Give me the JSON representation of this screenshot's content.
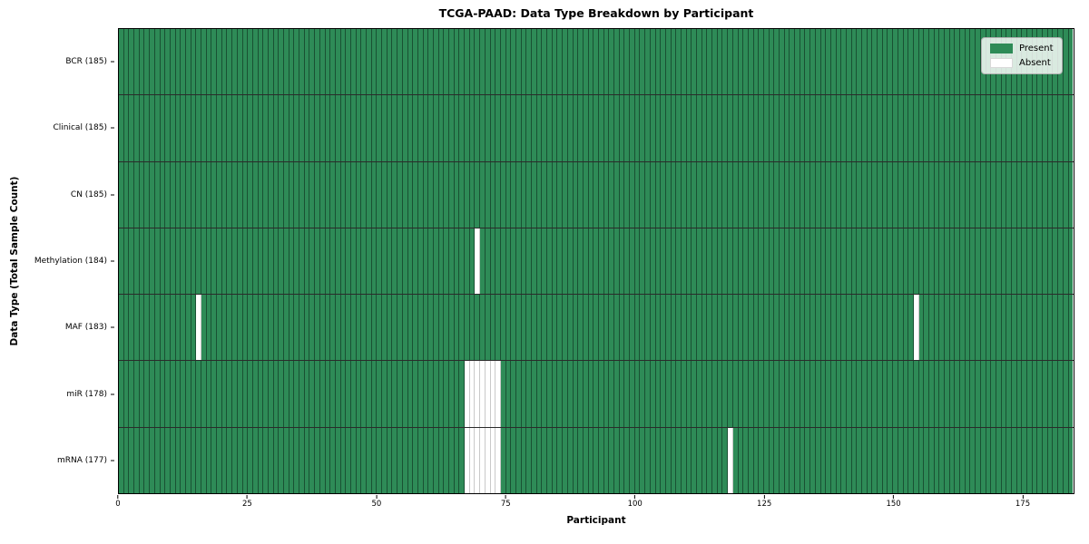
{
  "title": "TCGA-PAAD: Data Type Breakdown by Participant",
  "xlabel": "Participant",
  "ylabel": "Data Type (Total Sample Count)",
  "legend": {
    "present_label": "Present",
    "absent_label": "Absent"
  },
  "colors": {
    "present": "#2e8b57",
    "absent": "#ffffff"
  },
  "chart_data": {
    "type": "heatmap",
    "title": "TCGA-PAAD: Data Type Breakdown by Participant",
    "xlabel": "Participant",
    "ylabel": "Data Type (Total Sample Count)",
    "x_range": [
      0,
      185
    ],
    "n_participants": 185,
    "x_ticks": [
      0,
      25,
      50,
      75,
      100,
      125,
      150,
      175
    ],
    "legend_position": "upper right",
    "grid": "cell-edges",
    "rows": [
      {
        "label": "BCR (185)",
        "data_type": "BCR",
        "total_sample_count": 185,
        "absent_participants": []
      },
      {
        "label": "Clinical (185)",
        "data_type": "Clinical",
        "total_sample_count": 185,
        "absent_participants": []
      },
      {
        "label": "CN (185)",
        "data_type": "CN",
        "total_sample_count": 185,
        "absent_participants": []
      },
      {
        "label": "Methylation (184)",
        "data_type": "Methylation",
        "total_sample_count": 184,
        "absent_participants": [
          69
        ]
      },
      {
        "label": "MAF (183)",
        "data_type": "MAF",
        "total_sample_count": 183,
        "absent_participants": [
          15,
          154
        ]
      },
      {
        "label": "miR (178)",
        "data_type": "miR",
        "total_sample_count": 178,
        "absent_participants": [
          67,
          68,
          69,
          70,
          71,
          72,
          73
        ]
      },
      {
        "label": "mRNA (177)",
        "data_type": "mRNA",
        "total_sample_count": 177,
        "absent_participants": [
          67,
          68,
          69,
          70,
          71,
          72,
          73,
          118
        ]
      }
    ]
  }
}
